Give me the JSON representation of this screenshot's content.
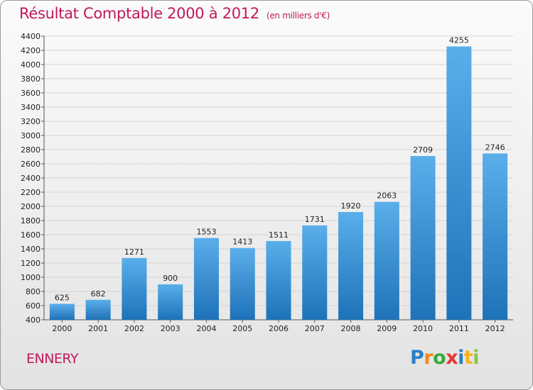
{
  "header": {
    "title": "Résultat Comptable 2000 à 2012",
    "subtitle": "(en milliers d'€)"
  },
  "footer": {
    "location": "ENNERY",
    "logo_letters": [
      "P",
      "r",
      "o",
      "x",
      "i",
      "t",
      "i"
    ],
    "logo_colors": [
      "#2a7fc9",
      "#f08a1c",
      "#3aa83a",
      "#e53935",
      "#2a7fc9",
      "#f6b31a",
      "#8bc34a"
    ]
  },
  "colors": {
    "title": "#c2185b",
    "bar_light": "#5aaeea",
    "bar_dark": "#1e72b8",
    "grid": "#d4d4d4"
  },
  "chart_data": {
    "type": "bar",
    "title": "Résultat Comptable 2000 à 2012",
    "subtitle": "(en milliers d'€)",
    "categories": [
      "2000",
      "2001",
      "2002",
      "2003",
      "2004",
      "2005",
      "2006",
      "2007",
      "2008",
      "2009",
      "2010",
      "2011",
      "2012"
    ],
    "values": [
      625,
      682,
      1271,
      900,
      1553,
      1413,
      1511,
      1731,
      1920,
      2063,
      2709,
      4255,
      2746
    ],
    "ylim": [
      400,
      4400
    ],
    "yticks": [
      400,
      600,
      800,
      1000,
      1200,
      1400,
      1600,
      1800,
      2000,
      2200,
      2400,
      2600,
      2800,
      3000,
      3200,
      3400,
      3600,
      3800,
      4000,
      4200,
      4400
    ],
    "grid": true,
    "xlabel": "",
    "ylabel": ""
  }
}
